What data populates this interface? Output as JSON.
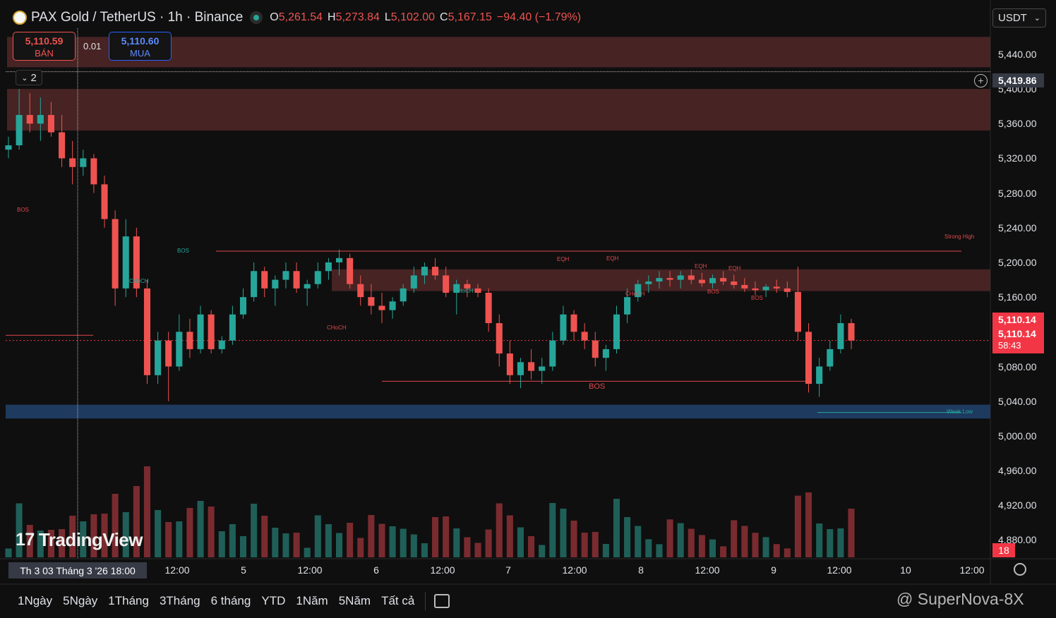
{
  "header": {
    "symbol": "PAX Gold / TetherUS · 1h · Binance",
    "open_label": "O",
    "open": "5,261.54",
    "high_label": "H",
    "high": "5,273.84",
    "low_label": "L",
    "low": "5,102.00",
    "close_label": "C",
    "close": "5,167.15",
    "change": "−94.40 (−1.79%)"
  },
  "trade": {
    "sell_price": "5,110.59",
    "sell_label": "BÁN",
    "spread": "0.01",
    "buy_price": "5,110.60",
    "buy_label": "MUA"
  },
  "indicator_toggle": "2",
  "currency": "USDT",
  "price_axis": {
    "ticks": [
      "5,440.00",
      "5,400.00",
      "5,360.00",
      "5,320.00",
      "5,280.00",
      "5,240.00",
      "5,200.00",
      "5,160.00",
      "5,080.00",
      "5,040.00",
      "5,000.00",
      "4,960.00",
      "4,920.00",
      "4,880.00"
    ],
    "crosshair_price": "5,419.86",
    "last_price_1": "5,110.14",
    "last_price_2": "5,110.14",
    "countdown": "58:43",
    "volume_badge": "18"
  },
  "time_axis": {
    "cursor_label": "Th 3 03 Tháng 3 '26   18:00",
    "labels": [
      "12:00",
      "5",
      "12:00",
      "6",
      "12:00",
      "7",
      "12:00",
      "8",
      "12:00",
      "9",
      "12:00",
      "10",
      "12:00"
    ]
  },
  "annotations": {
    "bos_labels": [
      "BOS",
      "BOS",
      "BOS",
      "BOS",
      "BOS"
    ],
    "choch_labels": [
      "CHoCH",
      "CHoCH",
      "CHoCH",
      "CHoCH"
    ],
    "eqh_labels": [
      "EQH",
      "EQH",
      "EQH",
      "EQH"
    ],
    "strong_high": "Strong High",
    "weak_low": "Weak Low"
  },
  "ranges": [
    "1Ngày",
    "5Ngày",
    "1Tháng",
    "3Tháng",
    "6 tháng",
    "YTD",
    "1Năm",
    "5Năm",
    "Tất cả"
  ],
  "logo": "TradingView",
  "watermark": "@ SuperNova-8X",
  "chart_data": {
    "type": "candlestick",
    "symbol": "PAXGUSDT",
    "interval": "1h",
    "ylim": [
      4860,
      5470
    ],
    "ohlc": [
      [
        5330,
        5345,
        5320,
        5335
      ],
      [
        5335,
        5400,
        5330,
        5370
      ],
      [
        5370,
        5395,
        5350,
        5360
      ],
      [
        5360,
        5390,
        5340,
        5370
      ],
      [
        5370,
        5385,
        5345,
        5350
      ],
      [
        5350,
        5370,
        5310,
        5320
      ],
      [
        5320,
        5340,
        5290,
        5310
      ],
      [
        5310,
        5330,
        5300,
        5320
      ],
      [
        5320,
        5325,
        5280,
        5290
      ],
      [
        5290,
        5300,
        5240,
        5250
      ],
      [
        5250,
        5260,
        5150,
        5170
      ],
      [
        5170,
        5250,
        5160,
        5230
      ],
      [
        5230,
        5240,
        5160,
        5170
      ],
      [
        5170,
        5180,
        5060,
        5070
      ],
      [
        5070,
        5120,
        5060,
        5110
      ],
      [
        5110,
        5120,
        5040,
        5080
      ],
      [
        5080,
        5140,
        5075,
        5120
      ],
      [
        5120,
        5135,
        5090,
        5100
      ],
      [
        5100,
        5150,
        5095,
        5140
      ],
      [
        5140,
        5145,
        5095,
        5100
      ],
      [
        5100,
        5115,
        5095,
        5110
      ],
      [
        5110,
        5150,
        5105,
        5140
      ],
      [
        5140,
        5170,
        5135,
        5160
      ],
      [
        5160,
        5200,
        5155,
        5190
      ],
      [
        5190,
        5195,
        5160,
        5170
      ],
      [
        5170,
        5185,
        5150,
        5180
      ],
      [
        5180,
        5200,
        5170,
        5190
      ],
      [
        5190,
        5200,
        5165,
        5170
      ],
      [
        5170,
        5180,
        5150,
        5175
      ],
      [
        5175,
        5200,
        5170,
        5190
      ],
      [
        5190,
        5205,
        5180,
        5200
      ],
      [
        5200,
        5215,
        5185,
        5205
      ],
      [
        5205,
        5210,
        5170,
        5175
      ],
      [
        5175,
        5185,
        5150,
        5160
      ],
      [
        5160,
        5175,
        5140,
        5150
      ],
      [
        5150,
        5165,
        5130,
        5145
      ],
      [
        5145,
        5160,
        5135,
        5155
      ],
      [
        5155,
        5175,
        5150,
        5170
      ],
      [
        5170,
        5195,
        5165,
        5185
      ],
      [
        5185,
        5200,
        5175,
        5195
      ],
      [
        5195,
        5205,
        5180,
        5185
      ],
      [
        5185,
        5195,
        5160,
        5165
      ],
      [
        5165,
        5180,
        5140,
        5175
      ],
      [
        5175,
        5180,
        5160,
        5170
      ],
      [
        5170,
        5175,
        5160,
        5165
      ],
      [
        5165,
        5170,
        5120,
        5130
      ],
      [
        5130,
        5140,
        5080,
        5095
      ],
      [
        5095,
        5110,
        5060,
        5070
      ],
      [
        5070,
        5090,
        5055,
        5085
      ],
      [
        5085,
        5100,
        5065,
        5075
      ],
      [
        5075,
        5090,
        5060,
        5080
      ],
      [
        5080,
        5120,
        5075,
        5110
      ],
      [
        5110,
        5150,
        5105,
        5140
      ],
      [
        5140,
        5145,
        5110,
        5120
      ],
      [
        5120,
        5130,
        5100,
        5110
      ],
      [
        5110,
        5120,
        5080,
        5090
      ],
      [
        5090,
        5105,
        5075,
        5100
      ],
      [
        5100,
        5150,
        5095,
        5140
      ],
      [
        5140,
        5170,
        5130,
        5160
      ],
      [
        5160,
        5180,
        5155,
        5175
      ],
      [
        5175,
        5185,
        5165,
        5178
      ],
      [
        5178,
        5190,
        5170,
        5182
      ],
      [
        5182,
        5190,
        5172,
        5180
      ],
      [
        5180,
        5190,
        5170,
        5185
      ],
      [
        5185,
        5192,
        5175,
        5180
      ],
      [
        5180,
        5188,
        5172,
        5176
      ],
      [
        5176,
        5186,
        5170,
        5182
      ],
      [
        5182,
        5190,
        5174,
        5178
      ],
      [
        5178,
        5186,
        5170,
        5174
      ],
      [
        5174,
        5182,
        5166,
        5170
      ],
      [
        5170,
        5178,
        5162,
        5168
      ],
      [
        5168,
        5175,
        5160,
        5172
      ],
      [
        5172,
        5180,
        5165,
        5170
      ],
      [
        5170,
        5178,
        5160,
        5166
      ],
      [
        5166,
        5195,
        5110,
        5120
      ],
      [
        5120,
        5130,
        5050,
        5060
      ],
      [
        5060,
        5090,
        5045,
        5080
      ],
      [
        5080,
        5110,
        5075,
        5100
      ],
      [
        5100,
        5140,
        5095,
        5130
      ],
      [
        5130,
        5135,
        5100,
        5110
      ]
    ]
  }
}
